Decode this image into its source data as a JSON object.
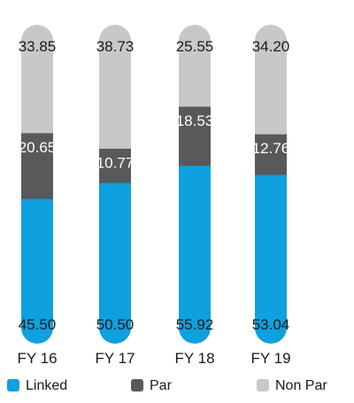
{
  "chart_data": {
    "type": "bar",
    "stacked": true,
    "categories": [
      "FY 16",
      "FY 17",
      "FY 18",
      "FY 19"
    ],
    "series": [
      {
        "name": "Linked",
        "color": "#0ea0df",
        "values": [
          45.5,
          50.5,
          55.92,
          53.04
        ],
        "labels": [
          "45.50",
          "50.50",
          "55.92",
          "53.04"
        ]
      },
      {
        "name": "Par",
        "color": "#58595b",
        "values": [
          20.65,
          10.77,
          18.53,
          12.76
        ],
        "labels": [
          "20.65",
          "10.77",
          "18.53",
          "12.76"
        ]
      },
      {
        "name": "Non Par",
        "color": "#c8c8ca",
        "values": [
          33.85,
          38.73,
          25.55,
          34.2
        ],
        "labels": [
          "33.85",
          "38.73",
          "25.55",
          "34.20"
        ]
      }
    ],
    "ylim": [
      0,
      100
    ],
    "legend": "bottom",
    "grid": false
  }
}
